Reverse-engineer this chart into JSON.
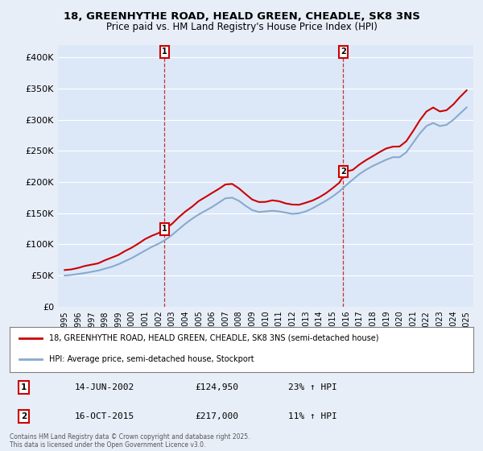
{
  "title_line1": "18, GREENHYTHE ROAD, HEALD GREEN, CHEADLE, SK8 3NS",
  "title_line2": "Price paid vs. HM Land Registry's House Price Index (HPI)",
  "legend_line1": "18, GREENHYTHE ROAD, HEALD GREEN, CHEADLE, SK8 3NS (semi-detached house)",
  "legend_line2": "HPI: Average price, semi-detached house, Stockport",
  "footnote": "Contains HM Land Registry data © Crown copyright and database right 2025.\nThis data is licensed under the Open Government Licence v3.0.",
  "transaction1_date": "14-JUN-2002",
  "transaction1_price": "£124,950",
  "transaction1_hpi": "23% ↑ HPI",
  "transaction2_date": "16-OCT-2015",
  "transaction2_price": "£217,000",
  "transaction2_hpi": "11% ↑ HPI",
  "marker1_x": 2002.45,
  "marker1_y": 124950,
  "marker2_x": 2015.79,
  "marker2_y": 217000,
  "vline1_x": 2002.45,
  "vline2_x": 2015.79,
  "xlim": [
    1994.5,
    2025.5
  ],
  "ylim": [
    0,
    420000
  ],
  "yticks": [
    0,
    50000,
    100000,
    150000,
    200000,
    250000,
    300000,
    350000,
    400000
  ],
  "ytick_labels": [
    "£0",
    "£50K",
    "£100K",
    "£150K",
    "£200K",
    "£250K",
    "£300K",
    "£350K",
    "£400K"
  ],
  "xticks": [
    1995,
    1996,
    1997,
    1998,
    1999,
    2000,
    2001,
    2002,
    2003,
    2004,
    2005,
    2006,
    2007,
    2008,
    2009,
    2010,
    2011,
    2012,
    2013,
    2014,
    2015,
    2016,
    2017,
    2018,
    2019,
    2020,
    2021,
    2022,
    2023,
    2024,
    2025
  ],
  "line_color_property": "#cc0000",
  "line_color_hpi": "#88aacc",
  "fig_bg_color": "#e8eef8",
  "plot_bg_color": "#dce8f8"
}
